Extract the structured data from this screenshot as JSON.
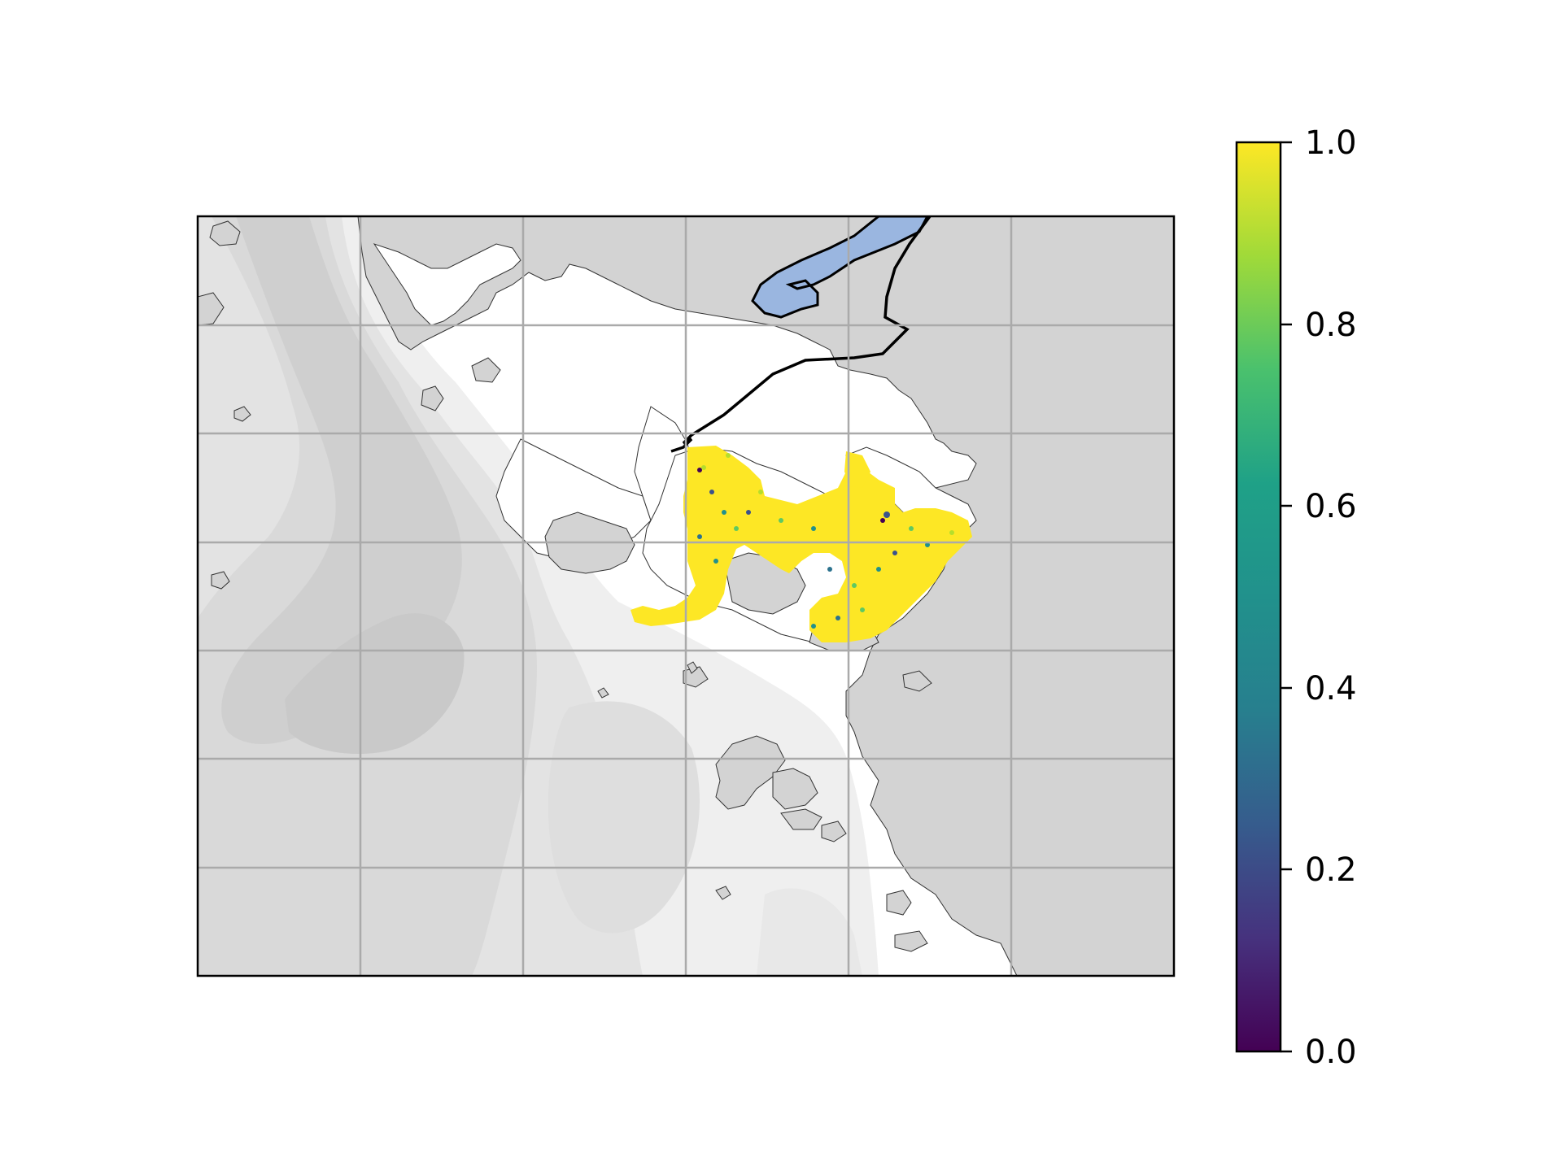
{
  "colors": {
    "land": "#d3d3d3",
    "sea": "#ffffff",
    "depth_light": "#ececec",
    "depth_mid": "#dcdcdc",
    "depth_deep": "#c8c8c8",
    "gridlines": "#aaaaaa",
    "coastline": "#333333",
    "lake": "#9ab6e0",
    "track": "#000000",
    "particles": "#fde725",
    "frame": "#000000"
  },
  "map": {
    "gridlines": true,
    "grid_columns": 6,
    "grid_rows": 7,
    "basemap": "land, bathymetry shading and coastlines",
    "track_line": "black trajectory line from top edge to particle release area",
    "particle_fill": "yellow (value 1.0) with scattered lower-value dots"
  },
  "chart_data": {
    "type": "scatter",
    "colormap": "viridis",
    "colorbar": {
      "range": [
        0.0,
        1.0
      ],
      "ticks": [
        "0.0",
        "0.2",
        "0.4",
        "0.6",
        "0.8",
        "1.0"
      ],
      "position": "right"
    },
    "particle_values": [
      1.0,
      0.9,
      0.85,
      0.7,
      0.6,
      0.5,
      0.4,
      0.3,
      0.2
    ]
  }
}
